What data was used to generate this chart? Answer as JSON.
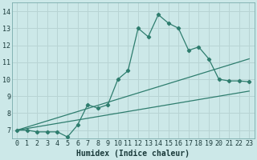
{
  "xlabel": "Humidex (Indice chaleur)",
  "bg_color": "#cce8e8",
  "grid_color": "#b8d4d4",
  "line_color": "#2e7d6e",
  "xlim": [
    -0.5,
    23.5
  ],
  "ylim": [
    6.5,
    14.5
  ],
  "xticks": [
    0,
    1,
    2,
    3,
    4,
    5,
    6,
    7,
    8,
    9,
    10,
    11,
    12,
    13,
    14,
    15,
    16,
    17,
    18,
    19,
    20,
    21,
    22,
    23
  ],
  "yticks": [
    7,
    8,
    9,
    10,
    11,
    12,
    13,
    14
  ],
  "series1_x": [
    0,
    1,
    2,
    3,
    4,
    5,
    6,
    7,
    8,
    9,
    10,
    11,
    12,
    13,
    14,
    15,
    16,
    17,
    18,
    19,
    20,
    21,
    22,
    23
  ],
  "series1_y": [
    7.0,
    7.0,
    6.9,
    6.9,
    6.9,
    6.6,
    7.3,
    8.5,
    8.3,
    8.5,
    10.0,
    10.5,
    13.0,
    12.5,
    13.8,
    13.3,
    13.0,
    11.7,
    11.9,
    11.2,
    10.0,
    9.9,
    9.9,
    9.85
  ],
  "line2_x": [
    0,
    23
  ],
  "line2_y": [
    7.0,
    11.2
  ],
  "line3_x": [
    0,
    23
  ],
  "line3_y": [
    7.0,
    9.3
  ],
  "tick_fontsize": 6,
  "xlabel_fontsize": 7
}
